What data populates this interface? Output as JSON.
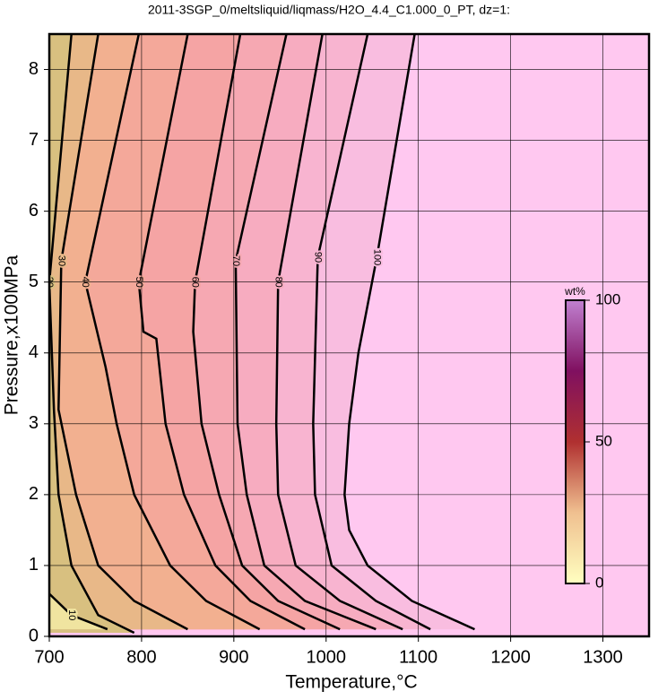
{
  "chart_data": {
    "type": "contour",
    "title": "2011-3SGP_0/meltsliquid/liqmass/H2O_4.4_C1.000_0_PT, dz=1:",
    "xlabel": "Temperature,°C",
    "ylabel": "Pressure,x100MPa",
    "xlim": [
      700,
      1350
    ],
    "ylim": [
      0,
      8.5
    ],
    "xticks": [
      700,
      800,
      900,
      1000,
      1100,
      1200,
      1300
    ],
    "yticks": [
      0,
      1,
      2,
      3,
      4,
      5,
      6,
      7,
      8
    ],
    "grid": true,
    "background": "#ffc8f0",
    "series": [
      {
        "name": "100",
        "color": "#f9bde0",
        "x": [
          1096,
          1055,
          1035,
          1025,
          1020,
          1025,
          1045,
          1093,
          1161
        ],
        "y": [
          8.5,
          5.35,
          4,
          3,
          2,
          1.5,
          1,
          0.5,
          0.1
        ]
      },
      {
        "name": "90",
        "color": "#f8b4d0",
        "x": [
          1045,
          991,
          986,
          988,
          1006,
          1054,
          1113
        ],
        "y": [
          8.5,
          5.35,
          3,
          2,
          1,
          0.5,
          0.1
        ]
      },
      {
        "name": "80",
        "color": "#f7acc0",
        "x": [
          996,
          948,
          946,
          948,
          967,
          1015,
          1083
        ],
        "y": [
          8.5,
          5,
          3,
          2,
          1,
          0.5,
          0.1
        ]
      },
      {
        "name": "70",
        "color": "#f6a8b2",
        "x": [
          957,
          902,
          904,
          914,
          933,
          977,
          1054
        ],
        "y": [
          8.5,
          5.3,
          3,
          2,
          1,
          0.5,
          0.1
        ]
      },
      {
        "name": "60",
        "color": "#f5a4a4",
        "x": [
          907,
          858,
          856,
          865,
          884,
          909,
          948,
          1015
        ],
        "y": [
          8.5,
          5,
          4.3,
          3,
          2,
          1,
          0.5,
          0.1
        ]
      },
      {
        "name": "50",
        "color": "#f4a89a",
        "x": [
          850,
          797,
          802,
          816,
          826,
          846,
          880,
          918,
          977
        ],
        "y": [
          8.5,
          5,
          4.3,
          4.2,
          3,
          2,
          1,
          0.5,
          0.1
        ]
      },
      {
        "name": "40",
        "color": "#f2b090",
        "x": [
          797,
          739,
          761,
          773,
          792,
          831,
          870,
          928
        ],
        "y": [
          8.5,
          5,
          3.8,
          3,
          2,
          1,
          0.5,
          0.1
        ]
      },
      {
        "name": "30",
        "color": "#e8b888",
        "x": [
          753,
          713,
          710,
          729,
          753,
          792,
          850
        ],
        "y": [
          8.5,
          5.3,
          3.2,
          2,
          1,
          0.5,
          0.1
        ]
      },
      {
        "name": "20",
        "color": "#d8c080",
        "x": [
          724,
          700,
          705,
          710,
          724,
          753,
          792
        ],
        "y": [
          8.5,
          5,
          3.2,
          2,
          1,
          0.3,
          0.05
        ]
      },
      {
        "name": "10",
        "color": "#f0e4a0",
        "x": [
          700,
          724,
          763
        ],
        "y": [
          0.6,
          0.3,
          0.1
        ]
      }
    ],
    "colorbar": {
      "label": "wt%",
      "lim": [
        0,
        100
      ],
      "ticks": [
        0,
        50,
        100
      ],
      "colors": [
        "#ffffc0",
        "#f0c090",
        "#b03030",
        "#801060",
        "#c080d0"
      ]
    }
  }
}
